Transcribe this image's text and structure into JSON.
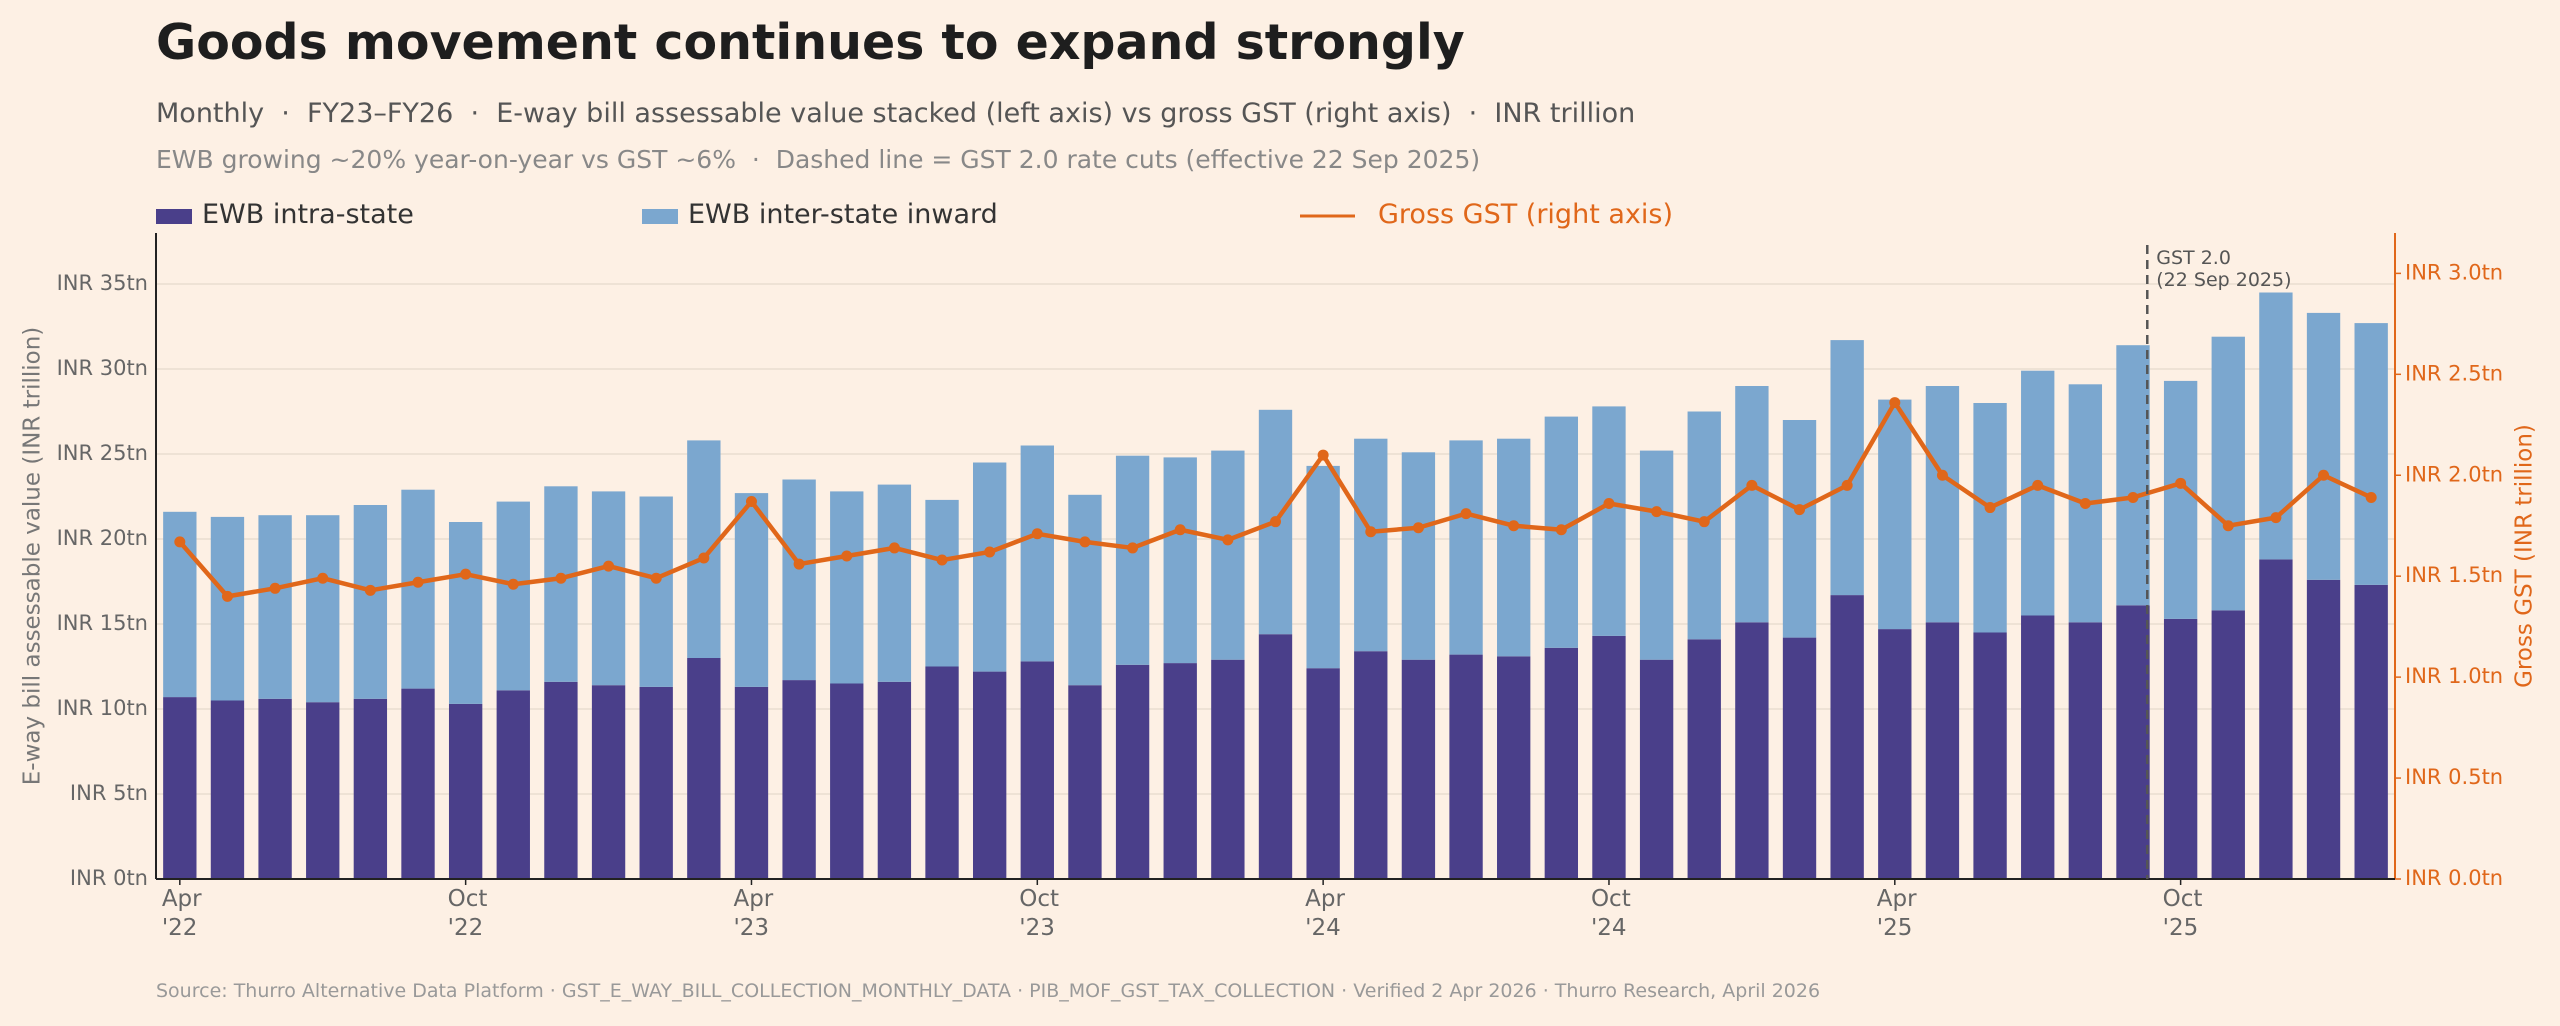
{
  "chart_data": {
    "type": "bar",
    "stacked": true,
    "title": "Goods movement continues to expand strongly",
    "subtitle": "Monthly  ·  FY23–FY26  ·  E-way bill assessable value stacked (left axis) vs gross GST (right axis)  ·  INR trillion",
    "subtitle2": "EWB growing ~20% year-on-year vs GST ~6%  ·  Dashed line = GST 2.0 rate cuts (effective 22 Sep 2025)",
    "source": "Source: Thurro Alternative Data Platform · GST_E_WAY_BILL_COLLECTION_MONTHLY_DATA · PIB_MOF_GST_TAX_COLLECTION · Verified 2 Apr 2026 · Thurro Research, April 2026",
    "ylabel": "E-way bill assessable value (INR trillion)",
    "y2label": "Gross GST (INR trillion)",
    "annotation": "GST 2.0\n(22 Sep 2025)",
    "categories": [
      "Apr\n'22",
      null,
      null,
      null,
      null,
      null,
      "Oct\n'22",
      null,
      null,
      null,
      null,
      null,
      "Apr\n'23",
      null,
      null,
      null,
      null,
      null,
      "Oct\n'23",
      null,
      null,
      null,
      null,
      null,
      "Apr\n'24",
      null,
      null,
      null,
      null,
      null,
      "Oct\n'24",
      null,
      null,
      null,
      null,
      null,
      "Apr\n'25",
      null,
      null,
      null,
      null,
      null,
      "Oct\n'25",
      null,
      null,
      null,
      null
    ],
    "series": [
      {
        "name": "EWB intra-state",
        "color": "#4a3f8a",
        "values": [
          10.7,
          10.5,
          10.6,
          10.4,
          10.6,
          11.2,
          10.3,
          11.1,
          11.6,
          11.4,
          11.3,
          13.0,
          11.3,
          11.7,
          11.5,
          11.6,
          12.5,
          12.2,
          12.8,
          11.4,
          12.6,
          12.7,
          12.9,
          14.4,
          12.4,
          13.4,
          12.9,
          13.2,
          13.1,
          13.6,
          14.3,
          12.9,
          14.1,
          15.1,
          14.2,
          16.7,
          14.7,
          15.1,
          14.5,
          15.5,
          15.1,
          16.1,
          15.3,
          15.8,
          18.8,
          17.6,
          17.3
        ]
      },
      {
        "name": "EWB inter-state inward",
        "color": "#7ba7cf",
        "values": [
          10.9,
          10.8,
          10.8,
          11.0,
          11.4,
          11.7,
          10.7,
          11.1,
          11.5,
          11.4,
          11.2,
          12.8,
          11.4,
          11.8,
          11.3,
          11.6,
          9.8,
          12.3,
          12.7,
          11.2,
          12.3,
          12.1,
          12.3,
          13.2,
          11.9,
          12.5,
          12.2,
          12.6,
          12.8,
          13.6,
          13.5,
          12.3,
          13.4,
          13.9,
          12.8,
          15.0,
          13.5,
          13.9,
          13.5,
          14.4,
          14.0,
          15.3,
          14.0,
          16.1,
          15.7,
          15.7,
          15.4
        ]
      },
      {
        "name": "Gross GST (right axis)",
        "color": "#e0671a",
        "type": "line",
        "axis": "y2",
        "values": [
          1.67,
          1.4,
          1.44,
          1.49,
          1.43,
          1.47,
          1.51,
          1.46,
          1.49,
          1.55,
          1.49,
          1.59,
          1.87,
          1.56,
          1.6,
          1.64,
          1.58,
          1.62,
          1.71,
          1.67,
          1.64,
          1.73,
          1.68,
          1.77,
          2.1,
          1.72,
          1.74,
          1.81,
          1.75,
          1.73,
          1.86,
          1.82,
          1.77,
          1.95,
          1.83,
          1.95,
          2.36,
          2.0,
          1.84,
          1.95,
          1.86,
          1.89,
          1.96,
          1.75,
          1.79,
          2.0,
          1.89
        ]
      }
    ],
    "ylim": [
      0,
      38
    ],
    "yticks": [
      {
        "value": 0,
        "label": "INR 0tn"
      },
      {
        "value": 5,
        "label": "INR 5tn"
      },
      {
        "value": 10,
        "label": "INR 10tn"
      },
      {
        "value": 15,
        "label": "INR 15tn"
      },
      {
        "value": 20,
        "label": "INR 20tn"
      },
      {
        "value": 25,
        "label": "INR 25tn"
      },
      {
        "value": 30,
        "label": "INR 30tn"
      },
      {
        "value": 35,
        "label": "INR 35tn"
      }
    ],
    "y2lim": [
      0,
      3.2
    ],
    "y2ticks": [
      {
        "value": 0,
        "label": "INR 0.0tn"
      },
      {
        "value": 0.5,
        "label": "INR 0.5tn"
      },
      {
        "value": 1,
        "label": "INR 1.0tn"
      },
      {
        "value": 1.5,
        "label": "INR 1.5tn"
      },
      {
        "value": 2,
        "label": "INR 2.0tn"
      },
      {
        "value": 2.5,
        "label": "INR 2.5tn"
      },
      {
        "value": 3,
        "label": "INR 3.0tn"
      }
    ],
    "grid": true
  }
}
